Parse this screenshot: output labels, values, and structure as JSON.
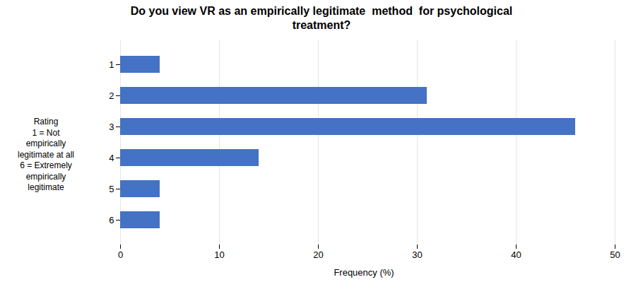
{
  "chart_data": {
    "type": "bar",
    "orientation": "horizontal",
    "title": "Do you view VR as an empirically legitimate  method  for psychological\ntreatment?",
    "categories": [
      "1",
      "2",
      "3",
      "4",
      "5",
      "6"
    ],
    "values": [
      4,
      31,
      46,
      14,
      4,
      4
    ],
    "color": "#4472C4",
    "xlabel": "Frequency (%)",
    "ylabel": "Rating\n1 = Not\nempirically\nlegitimate at all\n6 = Extremely\nempirically\nlegitimate",
    "xlim": [
      0,
      50
    ],
    "xticks": [
      0,
      10,
      20,
      30,
      40,
      50
    ],
    "grid": true
  }
}
